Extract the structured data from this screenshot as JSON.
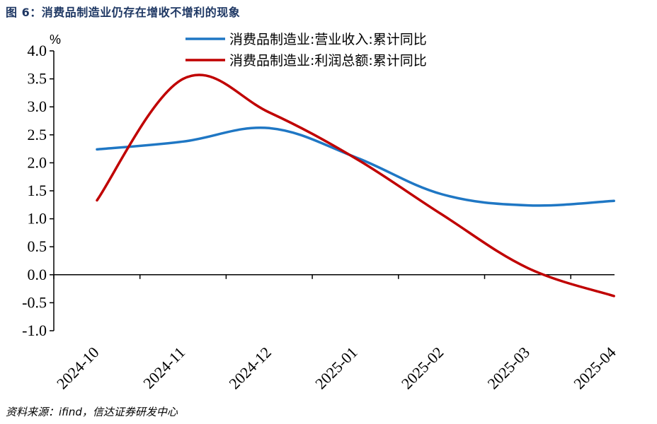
{
  "header": {
    "title": "图 6：消费品制造业仍存在增收不增利的现象"
  },
  "footer": {
    "source": "资料来源：ifind，信达证券研发中心"
  },
  "chart_data": {
    "type": "line",
    "title": "图 6：消费品制造业仍存在增收不增利的现象",
    "xlabel": "",
    "ylabel": "%",
    "categories": [
      "2024-10",
      "2024-11",
      "2024-12",
      "2025-01",
      "2025-02",
      "2025-03",
      "2025-04"
    ],
    "series": [
      {
        "name": "消费品制造业:营业收入:累计同比",
        "color": "#1f77c4",
        "values": [
          2.24,
          2.38,
          2.62,
          2.1,
          1.44,
          1.24,
          1.32
        ]
      },
      {
        "name": "消费品制造业:利润总额:累计同比",
        "color": "#c00000",
        "values": [
          1.33,
          3.5,
          2.9,
          2.08,
          1.08,
          0.12,
          -0.38
        ]
      }
    ],
    "ylim": [
      -1.0,
      4.0
    ],
    "yticks": [
      "4.0",
      "3.5",
      "3.0",
      "2.5",
      "2.0",
      "1.5",
      "1.0",
      "0.5",
      "0.0",
      "-0.5",
      "-1.0"
    ],
    "ytick_values": [
      4.0,
      3.5,
      3.0,
      2.5,
      2.0,
      1.5,
      1.0,
      0.5,
      0.0,
      -0.5,
      -1.0
    ],
    "grid": false,
    "legend_position": "top-right"
  }
}
